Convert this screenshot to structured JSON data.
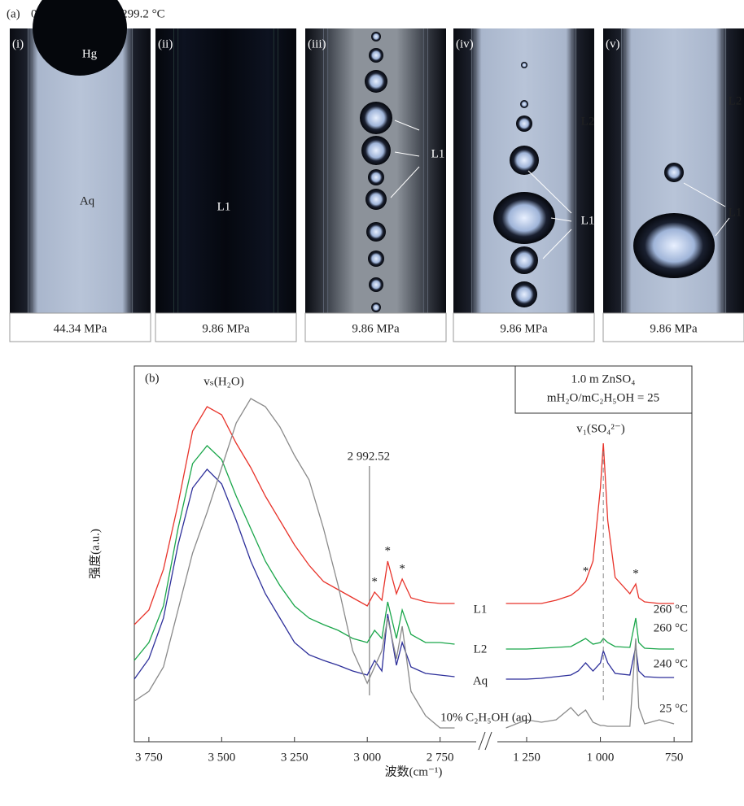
{
  "figure_a": {
    "label": "(a)",
    "condition": "0.5 m ZnSO₄, T = 299.2 °C",
    "panels": [
      {
        "label": "(i)",
        "pressure": "44.34 MPa",
        "phases": [
          "Hg",
          "Aq"
        ]
      },
      {
        "label": "(ii)",
        "pressure": "9.86 MPa",
        "phases": [
          "L1"
        ]
      },
      {
        "label": "(iii)",
        "pressure": "9.86 MPa",
        "phases": [
          "L1"
        ]
      },
      {
        "label": "(iv)",
        "pressure": "9.86 MPa",
        "phases": [
          "L2",
          "L1"
        ]
      },
      {
        "label": "(v)",
        "pressure": "9.86 MPa",
        "phases": [
          "L2",
          "L1"
        ]
      }
    ]
  },
  "chart_data": {
    "type": "line",
    "title": "(b)",
    "ylabel": "强度(a.u.)",
    "xlabel": "波数(cm⁻¹)",
    "box": [
      "1.0 m ZnSO₄",
      "mH₂O/mC₂H₅OH = 25"
    ],
    "annotations": [
      "vₛ(H₂O)",
      "v₁(SO₄²⁻)"
    ],
    "star": "*",
    "peak_marker": {
      "value": 2992.52,
      "label": "2 992.52"
    },
    "segments": [
      {
        "xlim": [
          3800,
          2640
        ],
        "xticks": [
          {
            "value": 3750,
            "label": "3 750"
          },
          {
            "value": 3500,
            "label": "3 500"
          },
          {
            "value": 3250,
            "label": "3 250"
          },
          {
            "value": 3000,
            "label": "3 000"
          },
          {
            "value": 2750,
            "label": "2 750"
          }
        ]
      },
      {
        "xlim": [
          1330,
          720
        ],
        "xticks": [
          {
            "value": 1250,
            "label": "1 250"
          },
          {
            "value": 1000,
            "label": "1 000"
          },
          750
        ]
      }
    ],
    "ylim": [
      0,
      460
    ],
    "x": [
      3800,
      3750,
      3700,
      3650,
      3600,
      3550,
      3500,
      3450,
      3400,
      3350,
      3300,
      3250,
      3200,
      3150,
      3100,
      3050,
      3000,
      2975,
      2950,
      2930,
      2900,
      2880,
      2850,
      2800,
      2750,
      2700,
      null,
      1320,
      1250,
      1200,
      1150,
      1100,
      1075,
      1050,
      1025,
      1000,
      990,
      975,
      950,
      900,
      880,
      870,
      850,
      800,
      750
    ],
    "series": [
      {
        "name": "L1",
        "temperature": "260 °C",
        "color": "#e8332a",
        "values": [
          144,
          162,
          212,
          292,
          382,
          412,
          402,
          367,
          337,
          302,
          272,
          242,
          217,
          197,
          187,
          177,
          167,
          184,
          174,
          222,
          182,
          200,
          177,
          172,
          170,
          170,
          null,
          170,
          170,
          170,
          174,
          180,
          187,
          197,
          222,
          312,
          367,
          272,
          202,
          182,
          194,
          177,
          172,
          170,
          170
        ]
      },
      {
        "name": "L2",
        "temperature": "260 °C",
        "color": "#1aa64a",
        "values": [
          100,
          122,
          167,
          262,
          342,
          364,
          347,
          302,
          262,
          222,
          192,
          167,
          152,
          144,
          137,
          127,
          122,
          137,
          127,
          172,
          127,
          162,
          132,
          122,
          122,
          120,
          null,
          114,
          114,
          115,
          116,
          117,
          122,
          127,
          120,
          122,
          127,
          122,
          117,
          116,
          152,
          122,
          115,
          114,
          114
        ]
      },
      {
        "name": "Aq",
        "temperature": "240 °C",
        "color": "#2d2f9a",
        "values": [
          77,
          102,
          152,
          242,
          312,
          335,
          317,
          272,
          222,
          182,
          152,
          122,
          107,
          100,
          94,
          87,
          82,
          100,
          87,
          157,
          94,
          122,
          92,
          84,
          82,
          80,
          null,
          77,
          77,
          78,
          80,
          82,
          87,
          97,
          87,
          97,
          112,
          97,
          84,
          82,
          117,
          87,
          80,
          79,
          79
        ]
      },
      {
        "name": "10% C₂H₅OH (aq)",
        "temperature": "25 °C",
        "color": "#8a8a8a",
        "values": [
          50,
          62,
          92,
          162,
          232,
          282,
          337,
          392,
          422,
          412,
          387,
          352,
          322,
          262,
          192,
          112,
          72,
          92,
          112,
          152,
          102,
          142,
          62,
          32,
          17,
          17,
          null,
          17,
          27,
          24,
          27,
          42,
          32,
          39,
          24,
          20,
          20,
          19,
          19,
          19,
          127,
          42,
          22,
          27,
          22
        ]
      }
    ]
  }
}
